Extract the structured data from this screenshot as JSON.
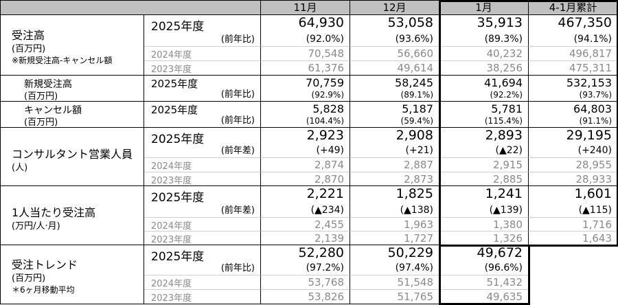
{
  "header": {
    "columns": [
      "11月",
      "12月",
      "1月",
      "4-1月累計"
    ]
  },
  "sections": [
    {
      "id": "orders",
      "title": "受注高",
      "unit": "(百万円)",
      "note": "※新規受注高-キャンセル額",
      "fy_current": "2025年度",
      "compare_label": "(前年比)",
      "current": [
        "64,930",
        "53,058",
        "35,913",
        "467,350"
      ],
      "compare": [
        "(92.0%)",
        "(93.6%)",
        "(89.3%)",
        "(94.1%)"
      ],
      "history": [
        {
          "label": "2024年度",
          "values": [
            "70,548",
            "56,660",
            "40,232",
            "496,817"
          ]
        },
        {
          "label": "2023年度",
          "values": [
            "61,376",
            "49,614",
            "38,256",
            "475,311"
          ]
        }
      ]
    },
    {
      "id": "new-orders",
      "title": "新規受注高",
      "unit": "(百万円)",
      "fy_current": "2025年度",
      "compare_label": "(前年比)",
      "current": [
        "70,759",
        "58,245",
        "41,694",
        "532,153"
      ],
      "compare": [
        "(92.9%)",
        "(89.1%)",
        "(92.2%)",
        "(93.7%)"
      ],
      "history": []
    },
    {
      "id": "cancellations",
      "title": "キャンセル額",
      "unit": "(百万円)",
      "fy_current": "2025年度",
      "compare_label": "(前年比)",
      "current": [
        "5,828",
        "5,187",
        "5,781",
        "64,803"
      ],
      "compare": [
        "(104.4%)",
        "(59.4%)",
        "(115.4%)",
        "(91.1%)"
      ],
      "history": []
    },
    {
      "id": "consultants",
      "title": "コンサルタント営業人員",
      "unit": "(人)",
      "fy_current": "2025年度",
      "compare_label": "(前年差)",
      "current": [
        "2,923",
        "2,908",
        "2,893",
        "29,195"
      ],
      "compare": [
        "(+49)",
        "(+21)",
        "(▲22)",
        "(+240)"
      ],
      "history": [
        {
          "label": "2024年度",
          "values": [
            "2,874",
            "2,887",
            "2,915",
            "28,955"
          ]
        },
        {
          "label": "2023年度",
          "values": [
            "2,870",
            "2,873",
            "2,885",
            "28,933"
          ]
        }
      ]
    },
    {
      "id": "orders-per-person",
      "title": "1人当たり受注高",
      "unit": "(万円/人·月)",
      "fy_current": "2025年度",
      "compare_label": "(前年差)",
      "current": [
        "2,221",
        "1,825",
        "1,241",
        "1,601"
      ],
      "compare": [
        "(▲234)",
        "(▲138)",
        "(▲139)",
        "(▲115)"
      ],
      "history": [
        {
          "label": "2024年度",
          "values": [
            "2,455",
            "1,963",
            "1,380",
            "1,716"
          ]
        },
        {
          "label": "2023年度",
          "values": [
            "2,139",
            "1,727",
            "1,326",
            "1,643"
          ]
        }
      ]
    },
    {
      "id": "order-trend",
      "title": "受注トレンド",
      "unit": "(百万円)",
      "note": "＊6ヶ月移動平均",
      "fy_current": "2025年度",
      "compare_label": "(前年比)",
      "current": [
        "52,280",
        "50,229",
        "49,672"
      ],
      "compare": [
        "(97.2%)",
        "(97.4%)",
        "(96.6%)"
      ],
      "history": [
        {
          "label": "2024年度",
          "values": [
            "53,768",
            "51,548",
            "51,432"
          ]
        },
        {
          "label": "2023年度",
          "values": [
            "53,826",
            "51,765",
            "49,635"
          ]
        }
      ]
    }
  ]
}
